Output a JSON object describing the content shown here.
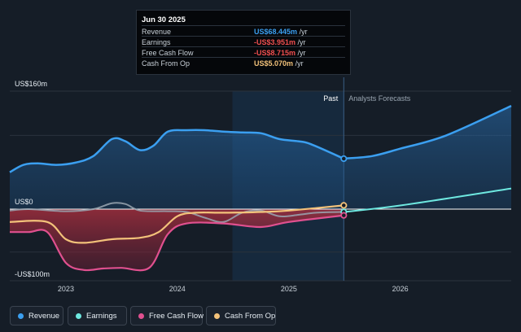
{
  "tooltip": {
    "date": "Jun 30 2025",
    "rows": [
      {
        "label": "Revenue",
        "value": "US$68.445m",
        "unit": "/yr",
        "color": "#3b9ff0"
      },
      {
        "label": "Earnings",
        "value": "-US$3.951m",
        "unit": "/yr",
        "color": "#f04f4f"
      },
      {
        "label": "Free Cash Flow",
        "value": "-US$8.715m",
        "unit": "/yr",
        "color": "#f04f4f"
      },
      {
        "label": "Cash From Op",
        "value": "US$5.070m",
        "unit": "/yr",
        "color": "#f3c27a"
      }
    ]
  },
  "legend": [
    {
      "label": "Revenue",
      "color": "#3b9ff0"
    },
    {
      "label": "Earnings",
      "color": "#6ee8e0"
    },
    {
      "label": "Free Cash Flow",
      "color": "#e0508f"
    },
    {
      "label": "Cash From Op",
      "color": "#f3c27a"
    }
  ],
  "chart_data": {
    "type": "line",
    "y_unit": "US$m",
    "ylim": [
      -100,
      160
    ],
    "xlim": [
      "2022-07-01",
      "2026-12-31"
    ],
    "y_tick_labels": [
      {
        "value": 160,
        "label": "US$160m"
      },
      {
        "value": 0,
        "label": "US$0"
      },
      {
        "value": -100,
        "label": "-US$100m"
      }
    ],
    "x_ticks": [
      {
        "date": "2023-01-01",
        "label": "2023"
      },
      {
        "date": "2024-01-01",
        "label": "2024"
      },
      {
        "date": "2025-01-01",
        "label": "2025"
      },
      {
        "date": "2026-01-01",
        "label": "2026"
      }
    ],
    "past_label": "Past",
    "forecast_label": "Analysts Forecasts",
    "highlight_start": "2024-06-30",
    "divider_date": "2025-06-30",
    "grid": true,
    "series": [
      {
        "name": "Revenue",
        "color": "#3b9ff0",
        "fill": "area",
        "points": [
          [
            "2022-07-01",
            50
          ],
          [
            "2022-08-15",
            60
          ],
          [
            "2022-10-01",
            62
          ],
          [
            "2022-12-01",
            60
          ],
          [
            "2023-02-01",
            63
          ],
          [
            "2023-04-01",
            72
          ],
          [
            "2023-06-01",
            95
          ],
          [
            "2023-07-15",
            92
          ],
          [
            "2023-09-01",
            80
          ],
          [
            "2023-10-15",
            86
          ],
          [
            "2023-12-01",
            105
          ],
          [
            "2024-02-01",
            107
          ],
          [
            "2024-04-01",
            107
          ],
          [
            "2024-06-01",
            105
          ],
          [
            "2024-08-01",
            104
          ],
          [
            "2024-10-01",
            103
          ],
          [
            "2024-12-01",
            95
          ],
          [
            "2025-02-01",
            92
          ],
          [
            "2025-03-15",
            88
          ],
          [
            "2025-06-30",
            68.445
          ]
        ],
        "forecast": [
          [
            "2025-06-30",
            68.445
          ],
          [
            "2025-10-01",
            72
          ],
          [
            "2026-01-01",
            82
          ],
          [
            "2026-06-01",
            100
          ],
          [
            "2026-12-31",
            140
          ]
        ]
      },
      {
        "name": "Earnings",
        "color": "#6ee8e0",
        "points": [
          [
            "2022-07-01",
            -2
          ],
          [
            "2022-09-01",
            0
          ],
          [
            "2023-01-01",
            -3
          ],
          [
            "2023-04-01",
            0
          ],
          [
            "2023-06-01",
            8
          ],
          [
            "2023-07-15",
            7
          ],
          [
            "2023-09-01",
            -2
          ],
          [
            "2023-12-01",
            -3
          ],
          [
            "2024-02-01",
            -4
          ],
          [
            "2024-04-01",
            -12
          ],
          [
            "2024-06-01",
            -18
          ],
          [
            "2024-08-01",
            -5
          ],
          [
            "2024-10-01",
            -2
          ],
          [
            "2024-12-01",
            -10
          ],
          [
            "2025-02-01",
            -8
          ],
          [
            "2025-04-01",
            -5
          ],
          [
            "2025-06-30",
            -3.951
          ]
        ],
        "forecast": [
          [
            "2025-06-30",
            -3.951
          ],
          [
            "2026-01-01",
            5
          ],
          [
            "2026-12-31",
            28
          ]
        ]
      },
      {
        "name": "Free Cash Flow",
        "color": "#e0508f",
        "fill": "area",
        "points": [
          [
            "2022-07-01",
            -32
          ],
          [
            "2022-09-01",
            -32
          ],
          [
            "2022-11-01",
            -32
          ],
          [
            "2023-01-01",
            -75
          ],
          [
            "2023-03-01",
            -85
          ],
          [
            "2023-05-01",
            -83
          ],
          [
            "2023-07-01",
            -82
          ],
          [
            "2023-10-01",
            -82
          ],
          [
            "2023-12-01",
            -35
          ],
          [
            "2024-02-01",
            -20
          ],
          [
            "2024-06-01",
            -20
          ],
          [
            "2024-10-01",
            -25
          ],
          [
            "2025-01-01",
            -18
          ],
          [
            "2025-06-30",
            -8.715
          ]
        ]
      },
      {
        "name": "Cash From Op",
        "color": "#f3c27a",
        "points": [
          [
            "2022-07-01",
            -18
          ],
          [
            "2022-11-01",
            -18
          ],
          [
            "2023-01-01",
            -42
          ],
          [
            "2023-03-01",
            -47
          ],
          [
            "2023-06-01",
            -42
          ],
          [
            "2023-09-01",
            -40
          ],
          [
            "2023-11-01",
            -32
          ],
          [
            "2024-01-01",
            -10
          ],
          [
            "2024-03-01",
            -5
          ],
          [
            "2024-06-01",
            -5
          ],
          [
            "2024-10-01",
            -4
          ],
          [
            "2025-01-01",
            -2
          ],
          [
            "2025-06-30",
            5.07
          ]
        ]
      }
    ]
  }
}
